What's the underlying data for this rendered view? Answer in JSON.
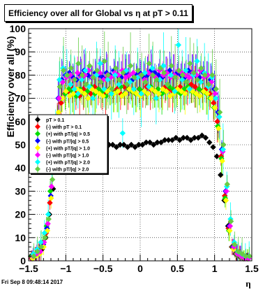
{
  "title": "Efficiency over all for Global vs    η at pT > 0.11",
  "footer": "Fri Sep  8 09:48:14 2017",
  "chart_data": {
    "type": "scatter",
    "xlabel": "η",
    "ylabel": "Efficiency over all (%)",
    "xlim": [
      -1.5,
      1.5
    ],
    "ylim": [
      0,
      100
    ],
    "xticks": [
      "−1.5",
      "−1",
      "−0.5",
      "0",
      "0.5",
      "1",
      "1.5"
    ],
    "yticks": [
      "0",
      "10",
      "20",
      "30",
      "40",
      "50",
      "60",
      "70",
      "80",
      "90",
      "100"
    ],
    "grid": true,
    "legend_position": "left",
    "x": [
      -1.45,
      -1.4,
      -1.35,
      -1.3,
      -1.25,
      -1.2,
      -1.15,
      -1.1,
      -1.05,
      -1.0,
      -0.95,
      -0.9,
      -0.85,
      -0.8,
      -0.75,
      -0.7,
      -0.65,
      -0.6,
      -0.55,
      -0.5,
      -0.45,
      -0.4,
      -0.35,
      -0.3,
      -0.25,
      -0.2,
      -0.15,
      -0.1,
      -0.05,
      0.0,
      0.05,
      0.1,
      0.15,
      0.2,
      0.25,
      0.3,
      0.35,
      0.4,
      0.45,
      0.5,
      0.55,
      0.6,
      0.65,
      0.7,
      0.75,
      0.8,
      0.85,
      0.9,
      0.95,
      1.0,
      1.05,
      1.1,
      1.15,
      1.2,
      1.25,
      1.3,
      1.35,
      1.4,
      1.45
    ],
    "series": [
      {
        "name": "pT > 0.1",
        "color": "#000000",
        "values": [
          2,
          2,
          3,
          5,
          10,
          20,
          31,
          40,
          47,
          50,
          51,
          50,
          49,
          50,
          50,
          49,
          50,
          49,
          50,
          50,
          49,
          50,
          50,
          49,
          50,
          50,
          49,
          50,
          49,
          50,
          50,
          51,
          51,
          50,
          51,
          51,
          52,
          52,
          52,
          53,
          52,
          53,
          53,
          52,
          53,
          53,
          54,
          53,
          51,
          49,
          45,
          37,
          26,
          15,
          6,
          3,
          2,
          2,
          2
        ]
      },
      {
        "name": "(-) with pT > 0.1",
        "color": "#ff0000",
        "values": [
          1,
          2,
          3,
          6,
          12,
          25,
          45,
          60,
          68,
          72,
          73,
          74,
          72,
          71,
          74,
          73,
          72,
          75,
          74,
          73,
          72,
          74,
          73,
          74,
          72,
          75,
          74,
          73,
          72,
          74,
          73,
          75,
          74,
          73,
          74,
          72,
          75,
          74,
          73,
          74,
          75,
          73,
          74,
          76,
          75,
          74,
          73,
          74,
          72,
          68,
          60,
          45,
          28,
          14,
          6,
          3,
          2,
          1,
          1
        ]
      },
      {
        "name": "(+) with pT/|q| > 0.5",
        "color": "#00dd00",
        "values": [
          2,
          3,
          4,
          8,
          15,
          30,
          50,
          62,
          70,
          72,
          74,
          73,
          71,
          74,
          72,
          73,
          75,
          72,
          74,
          73,
          71,
          74,
          72,
          73,
          75,
          72,
          74,
          73,
          72,
          74,
          73,
          72,
          75,
          73,
          74,
          72,
          73,
          75,
          74,
          73,
          72,
          74,
          75,
          73,
          72,
          74,
          73,
          72,
          70,
          66,
          58,
          44,
          27,
          13,
          6,
          3,
          2,
          1,
          1
        ]
      },
      {
        "name": "(-) with pT/|q| > 0.5",
        "color": "#0000ff",
        "values": [
          1,
          2,
          3,
          7,
          14,
          28,
          52,
          70,
          78,
          80,
          81,
          79,
          78,
          80,
          82,
          80,
          79,
          81,
          80,
          79,
          81,
          80,
          82,
          80,
          79,
          81,
          80,
          78,
          80,
          81,
          79,
          80,
          82,
          81,
          80,
          79,
          81,
          82,
          80,
          81,
          80,
          79,
          82,
          81,
          80,
          79,
          81,
          80,
          78,
          74,
          64,
          48,
          30,
          15,
          6,
          3,
          2,
          1,
          1
        ]
      },
      {
        "name": "(+) with pT/|q| > 1.0",
        "color": "#ffff00",
        "values": [
          1,
          2,
          3,
          6,
          13,
          27,
          48,
          64,
          70,
          73,
          71,
          72,
          74,
          73,
          72,
          70,
          74,
          73,
          72,
          71,
          73,
          74,
          72,
          73,
          71,
          72,
          74,
          73,
          72,
          71,
          73,
          72,
          74,
          73,
          72,
          74,
          73,
          71,
          72,
          74,
          73,
          72,
          74,
          73,
          72,
          71,
          73,
          72,
          70,
          66,
          57,
          43,
          26,
          13,
          5,
          3,
          2,
          1,
          1
        ]
      },
      {
        "name": "(-) with pT/|q| > 1.0",
        "color": "#ff00ff",
        "values": [
          2,
          3,
          4,
          8,
          16,
          32,
          55,
          70,
          77,
          79,
          80,
          78,
          81,
          79,
          80,
          82,
          79,
          80,
          81,
          78,
          80,
          79,
          81,
          80,
          82,
          79,
          80,
          81,
          79,
          80,
          78,
          81,
          80,
          79,
          82,
          80,
          81,
          79,
          80,
          82,
          81,
          80,
          79,
          81,
          80,
          82,
          79,
          80,
          77,
          72,
          62,
          47,
          30,
          15,
          6,
          3,
          2,
          1,
          1
        ]
      },
      {
        "name": "(+) with pT/|q| > 2.0",
        "color": "#00ffff",
        "values": [
          3,
          5,
          8,
          12,
          20,
          38,
          62,
          78,
          83,
          80,
          76,
          74,
          72,
          78,
          82,
          75,
          70,
          80,
          85,
          74,
          78,
          72,
          80,
          76,
          55,
          82,
          77,
          74,
          79,
          72,
          81,
          75,
          83,
          70,
          78,
          84,
          76,
          80,
          73,
          93,
          78,
          82,
          74,
          80,
          86,
          77,
          81,
          75,
          79,
          70,
          62,
          48,
          32,
          18,
          8,
          4,
          3,
          2,
          2
        ]
      },
      {
        "name": "(-) with pT/|q| > 2.0",
        "color": "#66cc44",
        "values": [
          2,
          4,
          6,
          10,
          18,
          35,
          58,
          75,
          82,
          80,
          83,
          78,
          85,
          80,
          76,
          84,
          79,
          82,
          77,
          86,
          80,
          74,
          83,
          78,
          81,
          76,
          84,
          79,
          82,
          80,
          77,
          85,
          80,
          78,
          83,
          81,
          76,
          84,
          79,
          82,
          80,
          77,
          85,
          81,
          78,
          83,
          80,
          76,
          80,
          74,
          64,
          50,
          33,
          17,
          7,
          4,
          3,
          2,
          2
        ]
      }
    ]
  }
}
